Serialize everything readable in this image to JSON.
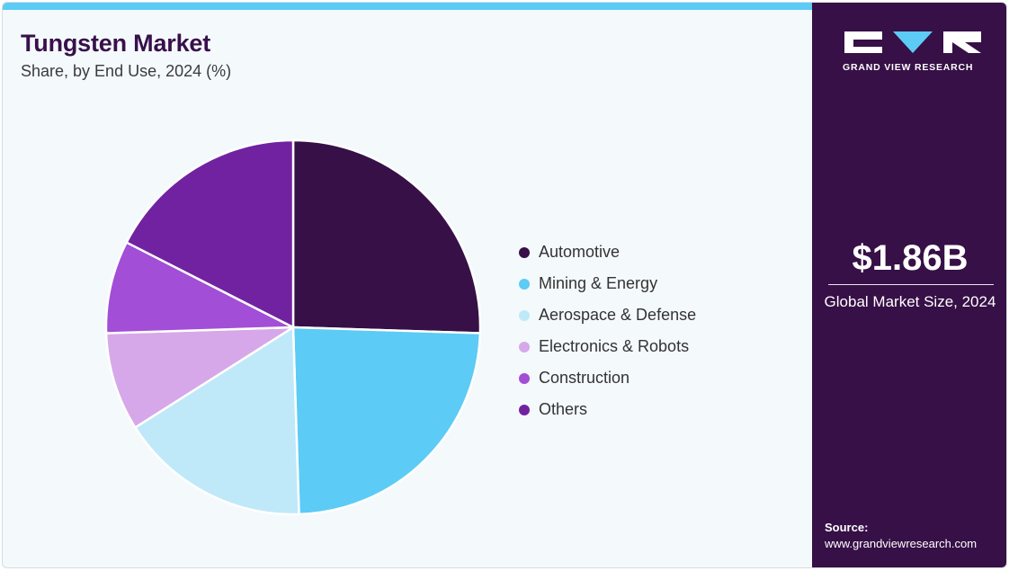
{
  "header": {
    "title": "Tungsten Market",
    "subtitle": "Share, by End Use, 2024 (%)"
  },
  "colors": {
    "accent_bar": "#5ccbf5",
    "sidebar_bg": "#361046",
    "panel_bg": "#f4f9fc"
  },
  "chart_data": {
    "type": "pie",
    "title": "Tungsten Market",
    "subtitle": "Share, by End Use, 2024 (%)",
    "legend_position": "right",
    "categories": [
      "Automotive",
      "Mining & Energy",
      "Aerospace & Defense",
      "Electronics & Robots",
      "Construction",
      "Others"
    ],
    "values": [
      25.5,
      24.0,
      16.5,
      8.5,
      8.0,
      17.5
    ],
    "colors": [
      "#361046",
      "#5ccbf5",
      "#bfe9f8",
      "#d6a8e9",
      "#a24ed7",
      "#7122a0"
    ]
  },
  "sidebar": {
    "logo_text": "GRAND VIEW RESEARCH",
    "market_value": "$1.86B",
    "market_label": "Global Market Size, 2024",
    "source_heading": "Source:",
    "source_url": "www.grandviewresearch.com"
  }
}
